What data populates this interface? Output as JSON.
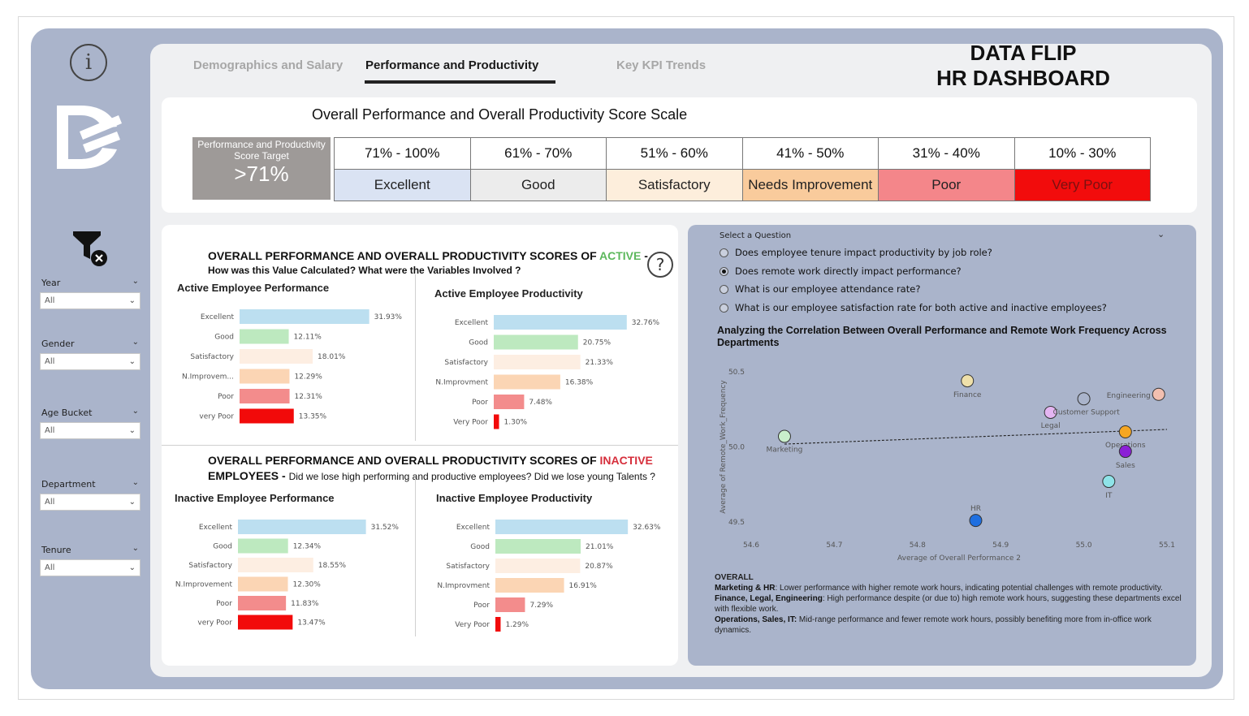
{
  "tabs": [
    {
      "label": "Demographics and Salary",
      "active": false
    },
    {
      "label": "Performance and Productivity",
      "active": true
    },
    {
      "label": "Key KPI Trends",
      "active": false
    }
  ],
  "brand": {
    "line1": "DATA FLIP",
    "line2": "HR DASHBOARD"
  },
  "sidebar": {
    "info_icon": "info-icon",
    "filter_icon": "clear-filter-icon",
    "slicers": [
      {
        "label": "Year",
        "value": "All"
      },
      {
        "label": "Gender",
        "value": "All"
      },
      {
        "label": "Age Bucket",
        "value": "All"
      },
      {
        "label": "Department",
        "value": "All"
      },
      {
        "label": "Tenure",
        "value": "All"
      }
    ]
  },
  "scale": {
    "title": "Overall Performance and Overall Productivity Score Scale",
    "target_label": "Performance and Productivity Score Target",
    "target_value": ">71%",
    "columns": [
      {
        "range": "71% - 100%",
        "rating": "Excellent",
        "color": "#dae3f3",
        "text_color": "#222222"
      },
      {
        "range": "61% - 70%",
        "rating": "Good",
        "color": "#ececec",
        "text_color": "#222222"
      },
      {
        "range": "51% - 60%",
        "rating": "Satisfactory",
        "color": "#fdeedc",
        "text_color": "#222222"
      },
      {
        "range": "41% - 50%",
        "rating": "Needs Improvement",
        "color": "#f9cb9c",
        "text_color": "#222222"
      },
      {
        "range": "31% - 40%",
        "rating": "Poor",
        "color": "#f4868a",
        "text_color": "#222222"
      },
      {
        "range": "10% - 30%",
        "rating": "Very Poor",
        "color": "#f20c0c",
        "text_color": "#7a1010"
      }
    ]
  },
  "active_section": {
    "heading_prefix": "OVERALL PERFORMANCE AND  OVERALL PRODUCTIVITY SCORES OF ",
    "heading_highlight": "ACTIVE",
    "heading_suffix": " -",
    "highlight_color": "#5cb85c",
    "subheading": "How was this Value Calculated? What were the Variables Involved ?"
  },
  "inactive_section": {
    "heading_prefix": "OVERALL PERFORMANCE AND  OVERALL PRODUCTIVITY SCORES OF ",
    "heading_highlight": "INACTIVE",
    "highlight_color": "#d62f3c",
    "subheading_bold": "EMPLOYEES - ",
    "subheading": "Did we lose high performing and productive employees? Did we lose young Talents ?"
  },
  "bar_colors": [
    "#bcdff0",
    "#bde9bf",
    "#fdeee2",
    "#fbd5b4",
    "#f38c8c",
    "#f20a0a"
  ],
  "chart_data": [
    {
      "type": "bar",
      "title": "Active Employee Performance",
      "categories": [
        "Excellent",
        "Good",
        "Satisfactory",
        "N.Improvem...",
        "Poor",
        "very Poor"
      ],
      "values": [
        31.93,
        12.11,
        18.01,
        12.29,
        12.31,
        13.35
      ],
      "labels": [
        "31.93%",
        "12.11%",
        "18.01%",
        "12.29%",
        "12.31%",
        "13.35%"
      ]
    },
    {
      "type": "bar",
      "title": "Active Employee Productivity",
      "categories": [
        "Excellent",
        "Good",
        "Satisfactory",
        "N.Improvment",
        "Poor",
        "Very Poor"
      ],
      "values": [
        32.76,
        20.75,
        21.33,
        16.38,
        7.48,
        1.3
      ],
      "labels": [
        "32.76%",
        "20.75%",
        "21.33%",
        "16.38%",
        "7.48%",
        "1.30%"
      ]
    },
    {
      "type": "bar",
      "title": "Inactive Employee Performance",
      "categories": [
        "Excellent",
        "Good",
        "Satisfactory",
        "N.Improvement",
        "Poor",
        "very Poor"
      ],
      "values": [
        31.52,
        12.34,
        18.55,
        12.3,
        11.83,
        13.47
      ],
      "labels": [
        "31.52%",
        "12.34%",
        "18.55%",
        "12.30%",
        "11.83%",
        "13.47%"
      ]
    },
    {
      "type": "bar",
      "title": "Inactive Employee Productivity",
      "categories": [
        "Excellent",
        "Good",
        "Satisfactory",
        "N.Improvment",
        "Poor",
        "Very Poor"
      ],
      "values": [
        32.63,
        21.01,
        20.87,
        16.91,
        7.29,
        1.29
      ],
      "labels": [
        "32.63%",
        "21.01%",
        "20.87%",
        "16.91%",
        "7.29%",
        "1.29%"
      ]
    },
    {
      "type": "scatter",
      "xlabel": "Average of Overall Performance 2",
      "ylabel": "Average of Remote_Work_Frequency",
      "xlim": [
        54.6,
        55.1
      ],
      "ylim": [
        49.5,
        50.5
      ],
      "xticks": [
        "54.6",
        "54.7",
        "54.8",
        "54.9",
        "55.0",
        "55.1"
      ],
      "yticks": [
        "50.5",
        "50.0",
        "49.5"
      ],
      "trendline": true,
      "points": [
        {
          "name": "Marketing",
          "x": 54.64,
          "y": 50.07,
          "color": "#c9eecb"
        },
        {
          "name": "Finance",
          "x": 54.86,
          "y": 50.44,
          "color": "#efe0aa"
        },
        {
          "name": "Legal",
          "x": 54.96,
          "y": 50.23,
          "color": "#e4b5f2"
        },
        {
          "name": "Customer Support",
          "x": 55.0,
          "y": 50.32,
          "color": "#aab4cb"
        },
        {
          "name": "Engineering",
          "x": 55.09,
          "y": 50.35,
          "color": "#f2bfb0"
        },
        {
          "name": "Operations",
          "x": 55.05,
          "y": 50.1,
          "color": "#f5a623"
        },
        {
          "name": "Sales",
          "x": 55.05,
          "y": 49.97,
          "color": "#8b1fd6"
        },
        {
          "name": "IT",
          "x": 55.03,
          "y": 49.77,
          "color": "#8ee3e8"
        },
        {
          "name": "HR",
          "x": 54.87,
          "y": 49.51,
          "color": "#1f6fe0"
        }
      ]
    }
  ],
  "question": {
    "label": "Select a Question",
    "options": [
      {
        "text": "Does employee tenure impact productivity by job role?",
        "selected": false
      },
      {
        "text": "Does remote work directly impact performance?",
        "selected": true
      },
      {
        "text": "What is our employee attendance rate?",
        "selected": false
      },
      {
        "text": "What is our employee satisfaction rate for both active and inactive employees?",
        "selected": false
      }
    ],
    "scatter_title": "Analyzing the Correlation Between Overall Performance and Remote Work Frequency Across Departments"
  },
  "notes": {
    "heading": "OVERALL",
    "items": [
      {
        "bold": "Marketing & HR",
        "text": ": Lower performance with higher remote work hours, indicating potential challenges with remote productivity."
      },
      {
        "bold": "Finance, Legal, Engineering",
        "text": ": High performance despite (or due to) high remote work hours, suggesting these departments excel with flexible work."
      },
      {
        "bold": "Operations, Sales, IT:",
        "text": " Mid-range performance and fewer remote work hours, possibly benefiting more from in-office work dynamics."
      }
    ]
  }
}
